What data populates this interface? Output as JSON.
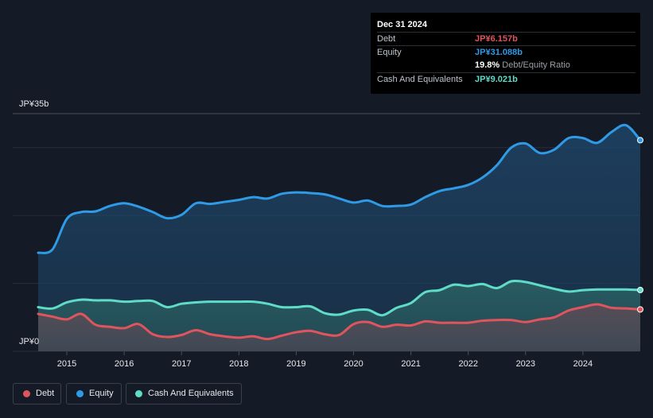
{
  "tooltip": {
    "date": "Dec 31 2024",
    "debt_label": "Debt",
    "debt_value": "JP¥6.157b",
    "equity_label": "Equity",
    "equity_value": "JP¥31.088b",
    "ratio_value": "19.8%",
    "ratio_label": "Debt/Equity Ratio",
    "cash_label": "Cash And Equivalents",
    "cash_value": "JP¥9.021b"
  },
  "axis": {
    "y_top_label": "JP¥35b",
    "y_bottom_label": "JP¥0"
  },
  "legend": {
    "debt": "Debt",
    "equity": "Equity",
    "cash": "Cash And Equivalents"
  },
  "colors": {
    "debt": "#e0555d",
    "equity": "#2f9be6",
    "cash": "#5fdcc8",
    "background": "#151b26"
  },
  "chart_data": {
    "type": "area",
    "x_ticks": [
      "2015",
      "2016",
      "2017",
      "2018",
      "2019",
      "2020",
      "2021",
      "2022",
      "2023",
      "2024"
    ],
    "ylim": [
      0,
      35
    ],
    "y_unit": "JP¥ billions",
    "series": [
      {
        "name": "Equity",
        "color": "#2f9be6",
        "points": [
          [
            2014.5,
            14.5
          ],
          [
            2014.75,
            15.0
          ],
          [
            2015.0,
            19.5
          ],
          [
            2015.25,
            20.5
          ],
          [
            2015.5,
            20.6
          ],
          [
            2015.75,
            21.4
          ],
          [
            2016.0,
            21.8
          ],
          [
            2016.25,
            21.3
          ],
          [
            2016.5,
            20.5
          ],
          [
            2016.75,
            19.6
          ],
          [
            2017.0,
            20.1
          ],
          [
            2017.25,
            21.8
          ],
          [
            2017.5,
            21.7
          ],
          [
            2017.75,
            22.0
          ],
          [
            2018.0,
            22.3
          ],
          [
            2018.25,
            22.7
          ],
          [
            2018.5,
            22.5
          ],
          [
            2018.75,
            23.2
          ],
          [
            2019.0,
            23.4
          ],
          [
            2019.25,
            23.3
          ],
          [
            2019.5,
            23.1
          ],
          [
            2019.75,
            22.5
          ],
          [
            2020.0,
            21.9
          ],
          [
            2020.25,
            22.2
          ],
          [
            2020.5,
            21.4
          ],
          [
            2020.75,
            21.4
          ],
          [
            2021.0,
            21.6
          ],
          [
            2021.25,
            22.7
          ],
          [
            2021.5,
            23.6
          ],
          [
            2021.75,
            24.0
          ],
          [
            2022.0,
            24.5
          ],
          [
            2022.25,
            25.6
          ],
          [
            2022.5,
            27.4
          ],
          [
            2022.75,
            30.0
          ],
          [
            2023.0,
            30.6
          ],
          [
            2023.25,
            29.2
          ],
          [
            2023.5,
            29.7
          ],
          [
            2023.75,
            31.4
          ],
          [
            2024.0,
            31.4
          ],
          [
            2024.25,
            30.7
          ],
          [
            2024.5,
            32.3
          ],
          [
            2024.75,
            33.3
          ],
          [
            2025.0,
            31.088
          ]
        ]
      },
      {
        "name": "Cash And Equivalents",
        "color": "#5fdcc8",
        "points": [
          [
            2014.5,
            6.5
          ],
          [
            2014.75,
            6.3
          ],
          [
            2015.0,
            7.2
          ],
          [
            2015.25,
            7.6
          ],
          [
            2015.5,
            7.5
          ],
          [
            2015.75,
            7.5
          ],
          [
            2016.0,
            7.3
          ],
          [
            2016.25,
            7.4
          ],
          [
            2016.5,
            7.4
          ],
          [
            2016.75,
            6.5
          ],
          [
            2017.0,
            7.0
          ],
          [
            2017.25,
            7.2
          ],
          [
            2017.5,
            7.3
          ],
          [
            2017.75,
            7.3
          ],
          [
            2018.0,
            7.3
          ],
          [
            2018.25,
            7.3
          ],
          [
            2018.5,
            7.0
          ],
          [
            2018.75,
            6.5
          ],
          [
            2019.0,
            6.5
          ],
          [
            2019.25,
            6.6
          ],
          [
            2019.5,
            5.6
          ],
          [
            2019.75,
            5.4
          ],
          [
            2020.0,
            6.0
          ],
          [
            2020.25,
            6.1
          ],
          [
            2020.5,
            5.3
          ],
          [
            2020.75,
            6.4
          ],
          [
            2021.0,
            7.1
          ],
          [
            2021.25,
            8.7
          ],
          [
            2021.5,
            9.0
          ],
          [
            2021.75,
            9.8
          ],
          [
            2022.0,
            9.6
          ],
          [
            2022.25,
            9.9
          ],
          [
            2022.5,
            9.3
          ],
          [
            2022.75,
            10.3
          ],
          [
            2023.0,
            10.2
          ],
          [
            2023.25,
            9.7
          ],
          [
            2023.5,
            9.2
          ],
          [
            2023.75,
            8.8
          ],
          [
            2024.0,
            9.0
          ],
          [
            2024.25,
            9.1
          ],
          [
            2024.5,
            9.1
          ],
          [
            2024.75,
            9.1
          ],
          [
            2025.0,
            9.021
          ]
        ]
      },
      {
        "name": "Debt",
        "color": "#e0555d",
        "points": [
          [
            2014.5,
            5.5
          ],
          [
            2014.75,
            5.1
          ],
          [
            2015.0,
            4.7
          ],
          [
            2015.25,
            5.5
          ],
          [
            2015.5,
            3.9
          ],
          [
            2015.75,
            3.6
          ],
          [
            2016.0,
            3.4
          ],
          [
            2016.25,
            4.0
          ],
          [
            2016.5,
            2.5
          ],
          [
            2016.75,
            2.1
          ],
          [
            2017.0,
            2.4
          ],
          [
            2017.25,
            3.1
          ],
          [
            2017.5,
            2.5
          ],
          [
            2017.75,
            2.2
          ],
          [
            2018.0,
            2.0
          ],
          [
            2018.25,
            2.2
          ],
          [
            2018.5,
            1.8
          ],
          [
            2018.75,
            2.3
          ],
          [
            2019.0,
            2.8
          ],
          [
            2019.25,
            3.0
          ],
          [
            2019.5,
            2.5
          ],
          [
            2019.75,
            2.4
          ],
          [
            2020.0,
            4.0
          ],
          [
            2020.25,
            4.3
          ],
          [
            2020.5,
            3.6
          ],
          [
            2020.75,
            3.9
          ],
          [
            2021.0,
            3.8
          ],
          [
            2021.25,
            4.4
          ],
          [
            2021.5,
            4.2
          ],
          [
            2021.75,
            4.2
          ],
          [
            2022.0,
            4.2
          ],
          [
            2022.25,
            4.5
          ],
          [
            2022.5,
            4.6
          ],
          [
            2022.75,
            4.6
          ],
          [
            2023.0,
            4.3
          ],
          [
            2023.25,
            4.7
          ],
          [
            2023.5,
            5.0
          ],
          [
            2023.75,
            6.0
          ],
          [
            2024.0,
            6.5
          ],
          [
            2024.25,
            6.9
          ],
          [
            2024.5,
            6.4
          ],
          [
            2024.75,
            6.3
          ],
          [
            2025.0,
            6.157
          ]
        ]
      }
    ],
    "gridlines": [
      0,
      10,
      20,
      30,
      35
    ]
  }
}
